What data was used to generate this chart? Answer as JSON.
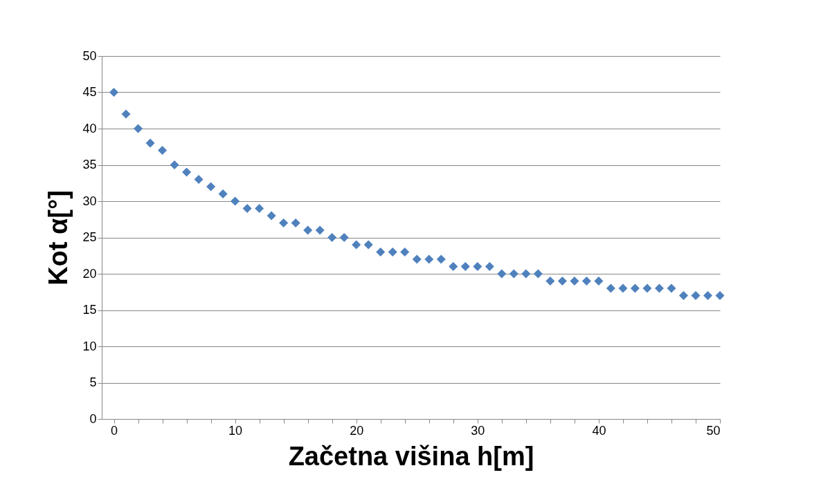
{
  "chart_data": {
    "type": "scatter",
    "xlabel": "Začetna višina h[m]",
    "ylabel": "Kot α[°]",
    "x": [
      0,
      1,
      2,
      3,
      4,
      5,
      6,
      7,
      8,
      9,
      10,
      11,
      12,
      13,
      14,
      15,
      16,
      17,
      18,
      19,
      20,
      21,
      22,
      23,
      24,
      25,
      26,
      27,
      28,
      29,
      30,
      31,
      32,
      33,
      34,
      35,
      36,
      37,
      38,
      39,
      40,
      41,
      42,
      43,
      44,
      45,
      46,
      47,
      48,
      49,
      50
    ],
    "series": [
      {
        "color": "#4f81bd",
        "values": [
          45,
          42,
          40,
          38,
          37,
          35,
          34,
          33,
          32,
          31,
          30,
          29,
          29,
          28,
          27,
          27,
          26,
          26,
          25,
          25,
          24,
          24,
          23,
          23,
          23,
          22,
          22,
          22,
          21,
          21,
          21,
          21,
          20,
          20,
          20,
          20,
          19,
          19,
          19,
          19,
          19,
          18,
          18,
          18,
          18,
          18,
          18,
          17,
          17,
          17,
          17
        ]
      }
    ],
    "xlim": [
      -1,
      50
    ],
    "xticks": [
      0,
      {
        "value": 2,
        "label": null
      },
      {
        "value": 4,
        "label": null
      },
      {
        "value": 6,
        "label": null
      },
      {
        "value": 8,
        "label": null
      },
      10,
      {
        "value": 12,
        "label": null
      },
      {
        "value": 14,
        "label": null
      },
      {
        "value": 16,
        "label": null
      },
      {
        "value": 18,
        "label": null
      },
      20,
      {
        "value": 22,
        "label": null
      },
      {
        "value": 24,
        "label": null
      },
      {
        "value": 26,
        "label": null
      },
      {
        "value": 28,
        "label": null
      },
      30,
      {
        "value": 32,
        "label": null
      },
      {
        "value": 34,
        "label": null
      },
      {
        "value": 36,
        "label": null
      },
      {
        "value": 38,
        "label": null
      },
      40,
      {
        "value": 42,
        "label": null
      },
      {
        "value": 44,
        "label": null
      },
      {
        "value": 46,
        "label": null
      },
      {
        "value": 48,
        "label": null
      },
      50
    ],
    "ylim": [
      0,
      50
    ],
    "yticks": [
      0,
      5,
      10,
      15,
      20,
      25,
      30,
      35,
      40,
      45,
      50
    ],
    "grid": "y",
    "marker": "diamond"
  }
}
